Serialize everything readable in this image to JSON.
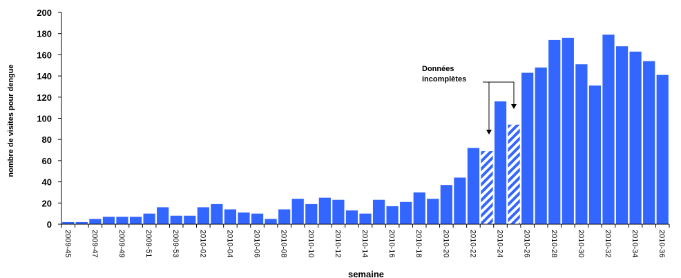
{
  "chart_data": {
    "type": "bar",
    "xlabel": "semaine",
    "ylabel": "nombre de visites pour dengue",
    "ylim": [
      0,
      200
    ],
    "yticks": [
      0,
      20,
      40,
      60,
      80,
      100,
      120,
      140,
      160,
      180,
      200
    ],
    "grid": false,
    "bar_color": "#3366FF",
    "tick_labels": [
      "2009-45",
      "2009-47",
      "2009-49",
      "2009-51",
      "2009-53",
      "2010-02",
      "2010-04",
      "2010-06",
      "2010-08",
      "2010-10",
      "2010-12",
      "2010-14",
      "2010-16",
      "2010-18",
      "2010-20",
      "2010-22",
      "2010-24",
      "2010-26",
      "2010-28",
      "2010-30",
      "2010-32",
      "2010-34",
      "2010-36"
    ],
    "values": [
      2,
      2,
      5,
      7,
      7,
      7,
      10,
      16,
      8,
      8,
      16,
      19,
      14,
      11,
      10,
      5,
      14,
      24,
      19,
      25,
      23,
      13,
      10,
      23,
      17,
      21,
      30,
      24,
      37,
      44,
      72,
      69,
      116,
      94,
      143,
      148,
      174,
      176,
      151,
      131,
      179,
      168,
      163,
      154,
      141
    ],
    "incomplete_indices": [
      31,
      33
    ],
    "annotation": {
      "line1": "Données",
      "line2": "incomplètes"
    }
  }
}
